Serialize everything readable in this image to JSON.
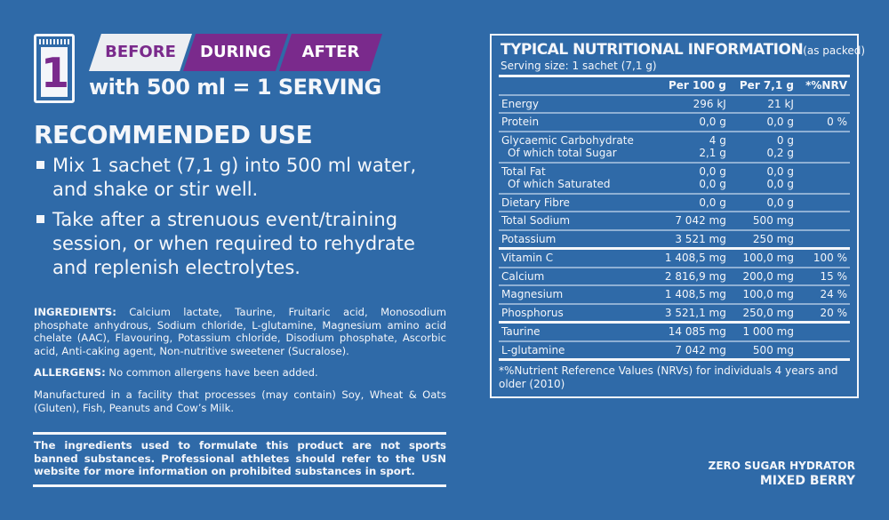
{
  "header": {
    "step_number": "1",
    "tabs": [
      "BEFORE",
      "DURING",
      "AFTER"
    ],
    "serving": "with 500 ml = 1 SERVING"
  },
  "recommended": {
    "title": "RECOMMENDED USE",
    "bullets": [
      "Mix 1 sachet (7,1 g) into 500 ml water, and shake or stir well.",
      "Take after a strenuous event/training session, or when required to rehydrate and replenish electrolytes."
    ]
  },
  "ingredients": {
    "label": "INGREDIENTS:",
    "text": " Calcium lactate, Taurine, Fruitaric acid, Monosodium phosphate anhydrous, Sodium chloride, L-glutamine, Magnesium amino acid chelate (AAC), Flavouring, Potassium chloride, Disodium phosphate, Ascorbic acid, Anti-caking agent, Non-nutritive sweetener (Sucralose)."
  },
  "allergens": {
    "label": "ALLERGENS:",
    "text": " No common allergens have been added."
  },
  "manufactured": "Manufactured in a facility that processes (may contain) Soy, Wheat & Oats (Gluten), Fish, Peanuts and Cow’s Milk.",
  "disclaimer": "The ingredients used to formulate this product are not sports banned substances. Professional athletes should refer to the USN website for more information on prohibited substances in sport.",
  "product": {
    "line": "ZERO SUGAR HYDRATOR",
    "flavour": "MIXED BERRY"
  },
  "nutrition": {
    "title": "TYPICAL NUTRITIONAL INFORMATION",
    "title_note": "(as packed)",
    "serving_size": "Serving size: 1 sachet (7,1 g)",
    "columns": [
      "",
      "Per 100 g",
      "Per 7,1 g",
      "*%NRV"
    ],
    "rows": [
      [
        "Energy",
        "296 kJ",
        "21 kJ",
        ""
      ],
      [
        "Protein",
        "0,0 g",
        "0,0 g",
        "0 %"
      ],
      [
        "Glycaemic Carbohydrate",
        "4 g",
        "0 g",
        ""
      ],
      [
        " Of which total Sugar",
        "2,1 g",
        "0,2 g",
        ""
      ],
      [
        "Total Fat",
        "0,0 g",
        "0,0 g",
        ""
      ],
      [
        " Of which Saturated",
        "0,0 g",
        "0,0 g",
        ""
      ],
      [
        "Dietary Fibre",
        "0,0 g",
        "0,0 g",
        ""
      ],
      [
        "Total Sodium",
        "7 042 mg",
        "500 mg",
        ""
      ],
      [
        "Potassium",
        "3 521 mg",
        "250 mg",
        ""
      ],
      [
        "Vitamin C",
        "1 408,5 mg",
        "100,0 mg",
        "100 %"
      ],
      [
        "Calcium",
        "2 816,9 mg",
        "200,0 mg",
        "15 %"
      ],
      [
        "Magnesium",
        "1 408,5 mg",
        "100,0 mg",
        "24 %"
      ],
      [
        "Phosphorus",
        "3 521,1 mg",
        "250,0 mg",
        "20 %"
      ],
      [
        "Taurine",
        "14 085 mg",
        "1 000 mg",
        ""
      ],
      [
        "L-glutamine",
        "7 042 mg",
        "500 mg",
        ""
      ]
    ],
    "footnote": "*%Nutrient Reference Values (NRVs) for individuals 4 years and older (2010)"
  },
  "colors": {
    "background": "#2f6aa8",
    "accent": "#7a2a8c",
    "text": "#f4f6fa"
  }
}
